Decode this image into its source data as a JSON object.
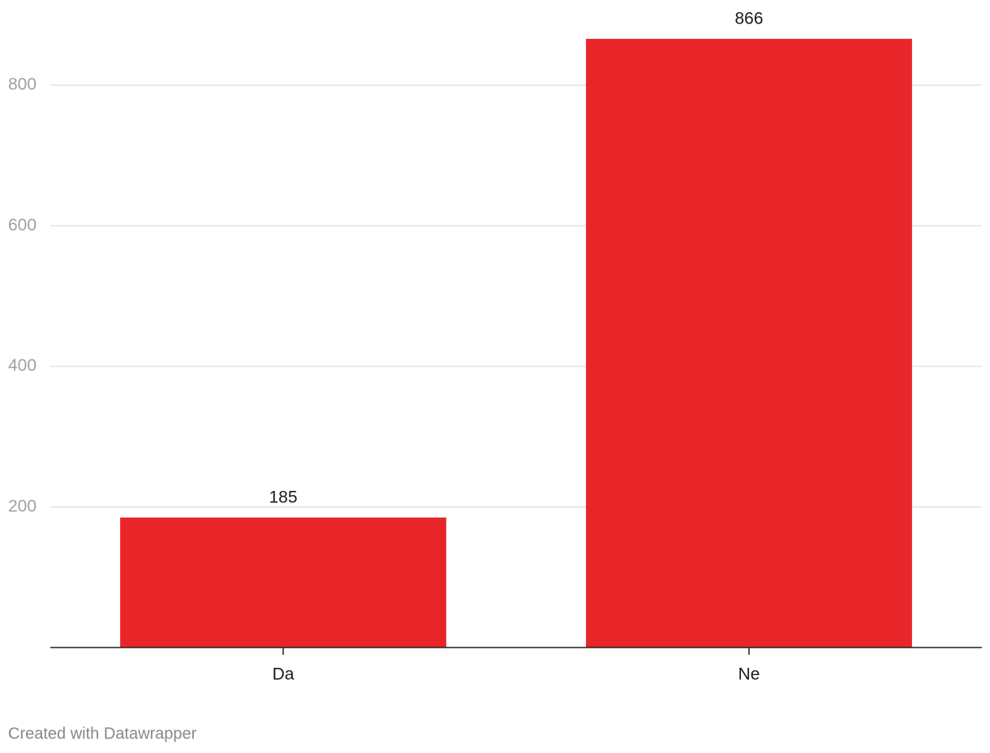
{
  "chart_data": {
    "type": "bar",
    "categories": [
      "Da",
      "Ne"
    ],
    "values": [
      185,
      866
    ],
    "color": "#e8262a",
    "ylim": [
      0,
      900
    ],
    "yticks": [
      200,
      400,
      600,
      800
    ],
    "grid": true,
    "credit": "Created with Datawrapper"
  }
}
